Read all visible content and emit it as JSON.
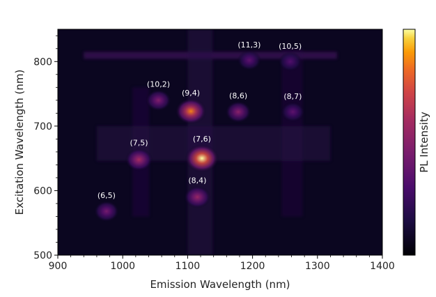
{
  "chart_data": {
    "type": "heatmap",
    "title": "",
    "xlabel": "Emission Wavelength (nm)",
    "ylabel": "Excitation Wavelength (nm)",
    "colorbar_label": "PL Intensity",
    "xlim": [
      900,
      1400
    ],
    "ylim": [
      500,
      850
    ],
    "x_ticks": [
      900,
      1000,
      1100,
      1200,
      1300,
      1400
    ],
    "y_ticks": [
      500,
      600,
      700,
      800
    ],
    "colormap": "inferno",
    "background_color": "#0b0620",
    "peaks": [
      {
        "label": "(6,5)",
        "emission": 975,
        "excitation": 568,
        "intensity": 0.38
      },
      {
        "label": "(7,5)",
        "emission": 1025,
        "excitation": 648,
        "intensity": 0.55
      },
      {
        "label": "(10,2)",
        "emission": 1055,
        "excitation": 740,
        "intensity": 0.42
      },
      {
        "label": "(9,4)",
        "emission": 1105,
        "excitation": 723,
        "intensity": 0.82
      },
      {
        "label": "(7,6)",
        "emission": 1122,
        "excitation": 650,
        "intensity": 1.0
      },
      {
        "label": "(8,4)",
        "emission": 1115,
        "excitation": 590,
        "intensity": 0.5
      },
      {
        "label": "(8,6)",
        "emission": 1178,
        "excitation": 722,
        "intensity": 0.45
      },
      {
        "label": "(11,3)",
        "emission": 1195,
        "excitation": 802,
        "intensity": 0.3
      },
      {
        "label": "(10,5)",
        "emission": 1258,
        "excitation": 800,
        "intensity": 0.26
      },
      {
        "label": "(8,7)",
        "emission": 1262,
        "excitation": 722,
        "intensity": 0.3
      }
    ]
  }
}
